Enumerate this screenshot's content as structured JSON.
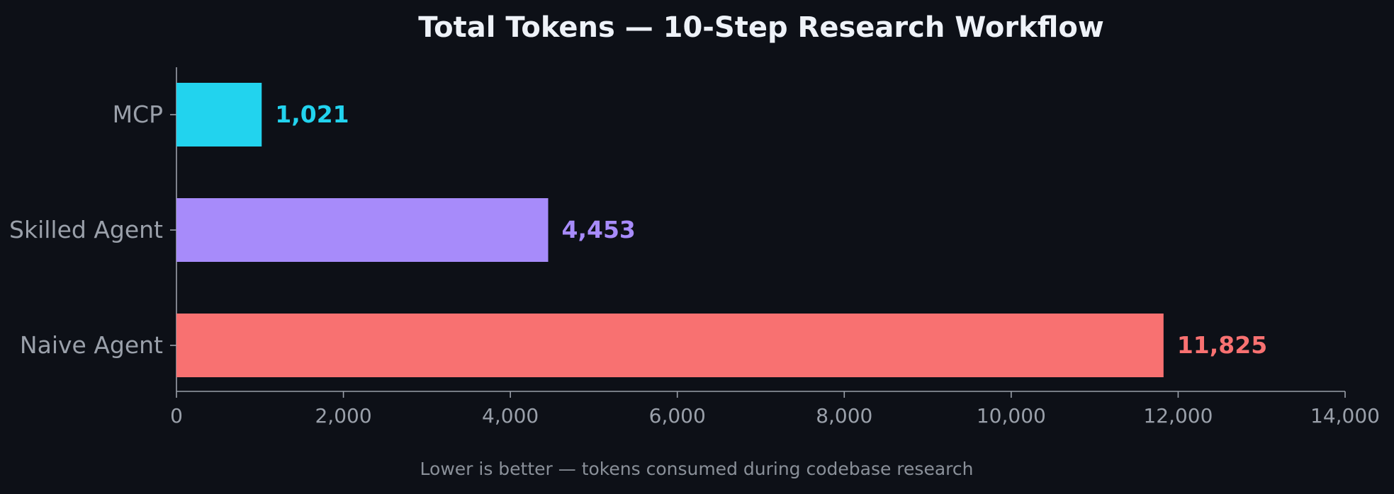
{
  "chart_data": {
    "type": "bar",
    "orientation": "horizontal",
    "title": "Total Tokens — 10-Step Research Workflow",
    "subtitle": "Lower is better — tokens consumed during codebase research",
    "xlabel": "",
    "ylabel": "",
    "categories": [
      "MCP",
      "Skilled Agent",
      "Naive Agent"
    ],
    "values": [
      1021,
      4453,
      11825
    ],
    "value_labels": [
      "1,021",
      "4,453",
      "11,825"
    ],
    "colors": [
      "#22d3ee",
      "#a78bfa",
      "#f87171"
    ],
    "xlim": [
      0,
      14000
    ],
    "xticks": [
      0,
      2000,
      4000,
      6000,
      8000,
      10000,
      12000,
      14000
    ],
    "xtick_labels": [
      "0",
      "2,000",
      "4,000",
      "6,000",
      "8,000",
      "10,000",
      "12,000",
      "14,000"
    ],
    "grid": false,
    "legend": "none"
  }
}
